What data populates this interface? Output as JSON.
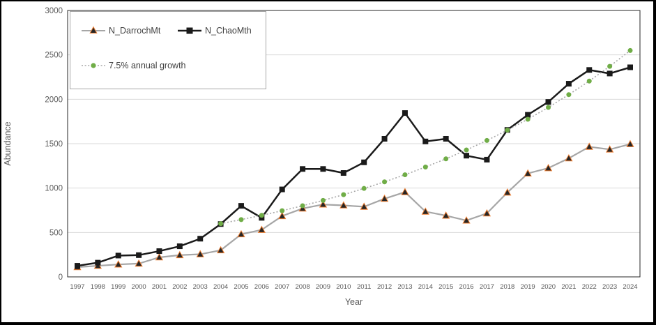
{
  "legend": {
    "items": [
      {
        "label": "N_DarrochMt"
      },
      {
        "label": "N_ChaoMth"
      },
      {
        "label": "7.5% annual growth"
      }
    ]
  },
  "colors": {
    "chao_line": "#1a1a1a",
    "darroch_line": "#a6a6a6",
    "darroch_marker_fill": "#262626",
    "darroch_marker_stroke": "#ed7d31",
    "growth_dot": "#70ad47",
    "growth_line": "#a6a6a6",
    "gridline": "#d9d9d9",
    "axis_frame": "#262626",
    "tick_text": "#595959"
  },
  "chart_data": {
    "type": "line",
    "title": "",
    "xlabel": "Year",
    "ylabel": "Abundance",
    "ylim": [
      0,
      3000
    ],
    "ytick_step": 500,
    "grid": true,
    "legend_position": "top-left",
    "x": [
      1997,
      1998,
      1999,
      2000,
      2001,
      2002,
      2003,
      2004,
      2005,
      2006,
      2007,
      2008,
      2009,
      2010,
      2011,
      2012,
      2013,
      2014,
      2015,
      2016,
      2017,
      2018,
      2019,
      2020,
      2021,
      2022,
      2023,
      2024
    ],
    "series": [
      {
        "name": "N_DarrochMt",
        "marker": "triangle",
        "line_style": "solid",
        "start_index": 0,
        "values": [
          110,
          125,
          140,
          150,
          220,
          245,
          255,
          300,
          480,
          530,
          685,
          770,
          815,
          805,
          790,
          880,
          955,
          735,
          690,
          635,
          715,
          950,
          1165,
          1225,
          1335,
          1465,
          1435,
          1495
        ]
      },
      {
        "name": "N_ChaoMth",
        "marker": "square",
        "line_style": "solid",
        "start_index": 0,
        "values": [
          125,
          160,
          240,
          245,
          290,
          345,
          430,
          595,
          800,
          665,
          985,
          1215,
          1215,
          1170,
          1290,
          1555,
          1845,
          1525,
          1555,
          1365,
          1320,
          1655,
          1825,
          1970,
          2175,
          2330,
          2290,
          2360
        ]
      },
      {
        "name": "7.5% annual growth",
        "marker": "circle",
        "line_style": "dotted",
        "start_index": 7,
        "values": [
          600,
          645,
          693,
          745,
          801,
          861,
          926,
          996,
          1070,
          1150,
          1237,
          1329,
          1429,
          1536,
          1652,
          1775,
          1908,
          2052,
          2205,
          2371,
          2549
        ]
      }
    ]
  }
}
